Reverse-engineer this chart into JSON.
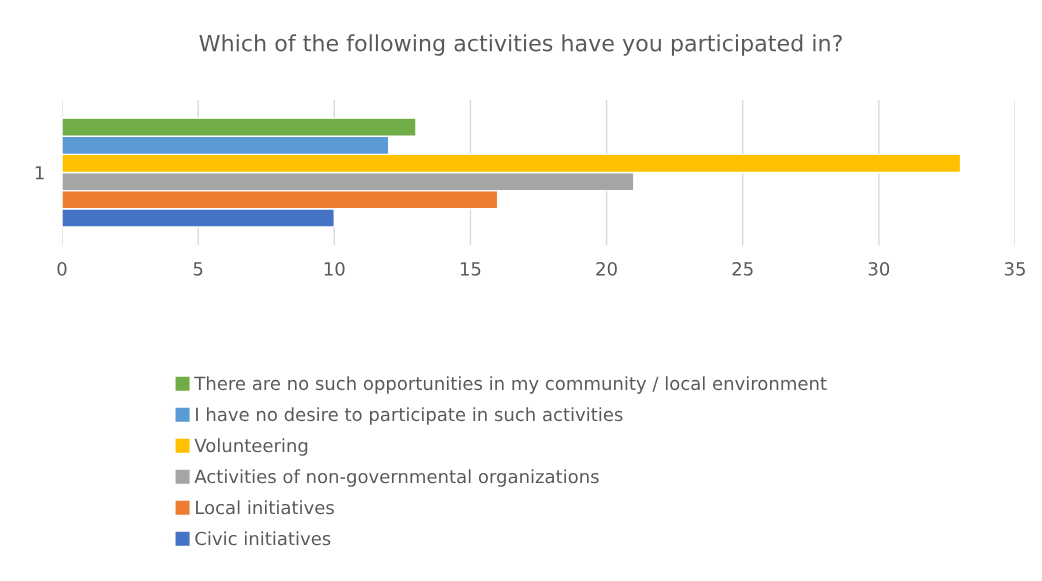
{
  "chart_data": {
    "type": "bar",
    "orientation": "horizontal",
    "title": "Which of the following activities have you participated in?",
    "categories": [
      "1"
    ],
    "series": [
      {
        "name": "Civic initiatives",
        "color": "#4472c4",
        "values": [
          10
        ]
      },
      {
        "name": "Local initiatives",
        "color": "#ed7d31",
        "values": [
          16
        ]
      },
      {
        "name": "Activities of non-governmental organizations",
        "color": "#a5a5a5",
        "values": [
          21
        ]
      },
      {
        "name": "Volunteering",
        "color": "#ffc000",
        "values": [
          33
        ]
      },
      {
        "name": "I have no desire to participate in such activities",
        "color": "#5b9bd5",
        "values": [
          12
        ]
      },
      {
        "name": "There are no such opportunities in my community / local environment",
        "color": "#70ad47",
        "values": [
          13
        ]
      }
    ],
    "xlim": [
      0,
      35
    ],
    "xticks": [
      0,
      5,
      10,
      15,
      20,
      25,
      30,
      35
    ],
    "grid": "x",
    "legend": "bottom"
  }
}
